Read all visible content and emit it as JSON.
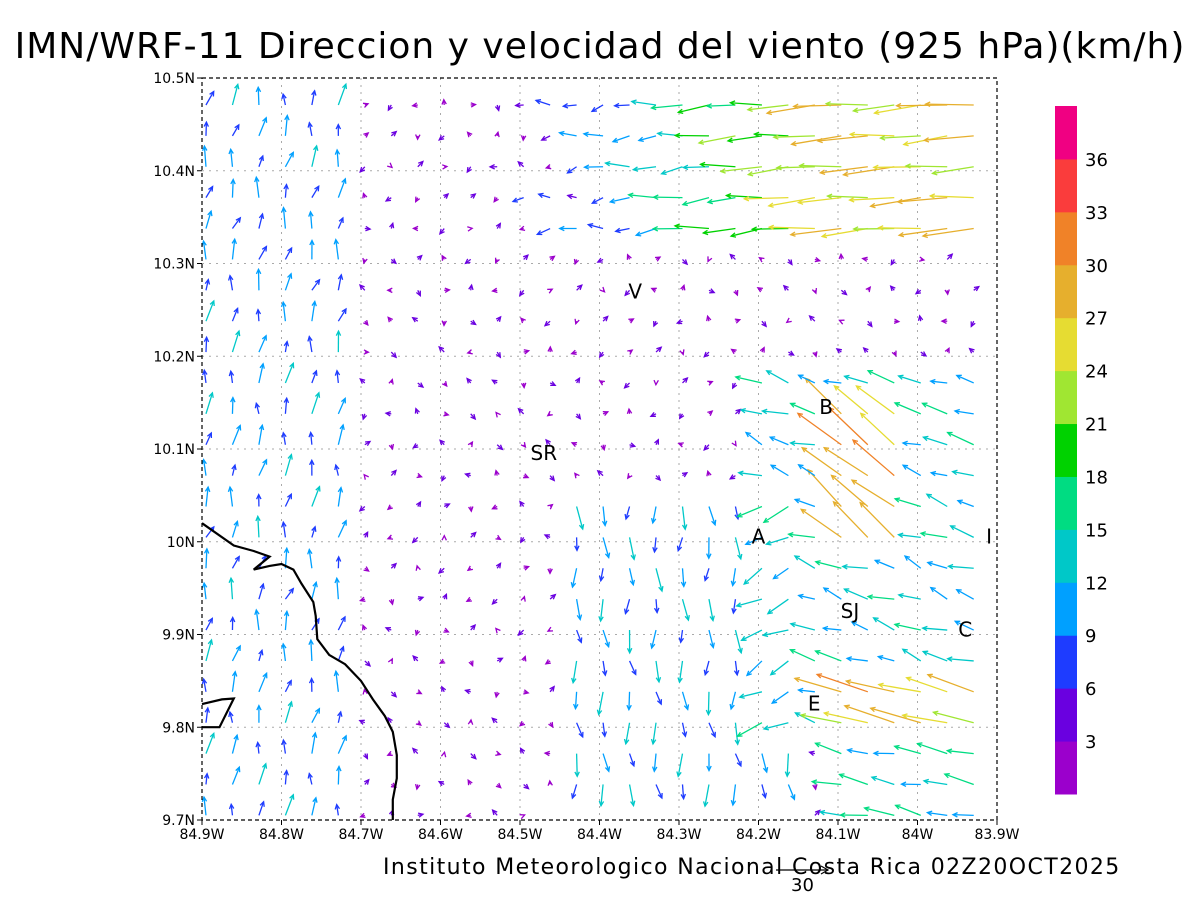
{
  "title": "IMN/WRF-11 Direccion y velocidad del viento (925 hPa)(km/h)",
  "footer": "Instituto Meteorologico Nacional Costa Rica 02Z20OCT2025",
  "reference_vector": {
    "value": "30"
  },
  "map": {
    "lat_ticks": [
      {
        "value": 10.5,
        "label": "10.5N"
      },
      {
        "value": 10.4,
        "label": "10.4N"
      },
      {
        "value": 10.3,
        "label": "10.3N"
      },
      {
        "value": 10.2,
        "label": "10.2N"
      },
      {
        "value": 10.1,
        "label": "10.1N"
      },
      {
        "value": 10.0,
        "label": "10N"
      },
      {
        "value": 9.9,
        "label": "9.9N"
      },
      {
        "value": 9.8,
        "label": "9.8N"
      },
      {
        "value": 9.7,
        "label": "9.7N"
      }
    ],
    "lon_ticks": [
      {
        "value": -84.9,
        "label": "84.9W"
      },
      {
        "value": -84.8,
        "label": "84.8W"
      },
      {
        "value": -84.7,
        "label": "84.7W"
      },
      {
        "value": -84.6,
        "label": "84.6W"
      },
      {
        "value": -84.5,
        "label": "84.5W"
      },
      {
        "value": -84.4,
        "label": "84.4W"
      },
      {
        "value": -84.3,
        "label": "84.3W"
      },
      {
        "value": -84.2,
        "label": "84.2W"
      },
      {
        "value": -84.1,
        "label": "84.1W"
      },
      {
        "value": -84.0,
        "label": "84W"
      },
      {
        "value": -83.9,
        "label": "83.9W"
      }
    ],
    "places": [
      {
        "label": "V",
        "lon": -84.355,
        "lat": 10.262
      },
      {
        "label": "B",
        "lon": -84.115,
        "lat": 10.138
      },
      {
        "label": "SR",
        "lon": -84.47,
        "lat": 10.088
      },
      {
        "label": "A",
        "lon": -84.2,
        "lat": 9.998
      },
      {
        "label": "SJ",
        "lon": -84.085,
        "lat": 9.918
      },
      {
        "label": "C",
        "lon": -83.94,
        "lat": 9.898
      },
      {
        "label": "I",
        "lon": -83.91,
        "lat": 9.998
      },
      {
        "label": "E",
        "lon": -84.13,
        "lat": 9.818
      }
    ],
    "coastline": [
      [
        -84.9,
        10.02
      ],
      [
        -84.86,
        9.996
      ],
      [
        -84.835,
        9.99
      ],
      [
        -84.815,
        9.984
      ],
      [
        -84.835,
        9.97
      ],
      [
        -84.815,
        9.974
      ],
      [
        -84.8,
        9.976
      ],
      [
        -84.785,
        9.97
      ],
      [
        -84.775,
        9.955
      ],
      [
        -84.76,
        9.935
      ],
      [
        -84.757,
        9.92
      ],
      [
        -84.755,
        9.895
      ],
      [
        -84.74,
        9.878
      ],
      [
        -84.72,
        9.868
      ],
      [
        -84.7,
        9.85
      ],
      [
        -84.685,
        9.83
      ],
      [
        -84.67,
        9.812
      ],
      [
        -84.66,
        9.795
      ],
      [
        -84.655,
        9.77
      ],
      [
        -84.655,
        9.745
      ],
      [
        -84.66,
        9.722
      ],
      [
        -84.66,
        9.7
      ]
    ],
    "coast_fragment": [
      [
        -84.9,
        9.825
      ],
      [
        -84.875,
        9.83
      ],
      [
        -84.86,
        9.831
      ],
      [
        -84.878,
        9.8
      ],
      [
        -84.9,
        9.8
      ]
    ]
  },
  "colorbar": {
    "colors": [
      "#9b00cc",
      "#6a00e0",
      "#1e3cff",
      "#00a0ff",
      "#00c8c8",
      "#00dc82",
      "#00d200",
      "#a0e632",
      "#e6dc32",
      "#e6af2d",
      "#f08228",
      "#fa3c3c",
      "#f00082"
    ],
    "labels": [
      "3",
      "6",
      "9",
      "12",
      "15",
      "18",
      "21",
      "24",
      "27",
      "30",
      "33",
      "36"
    ]
  },
  "wind_field_note": ""
}
